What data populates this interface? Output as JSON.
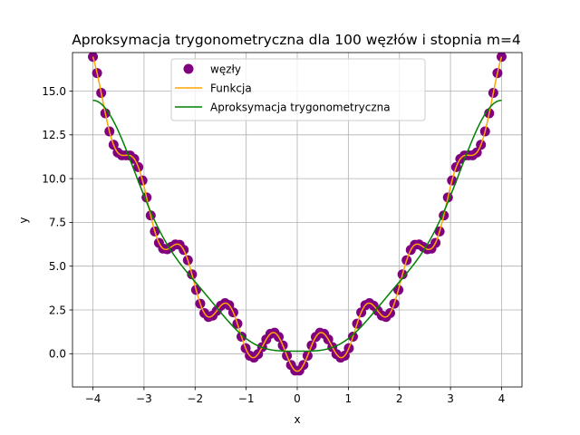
{
  "chart_data": {
    "type": "line",
    "title": "Aproksymacja trygonometryczna dla 100 węzłów i stopnia m=4",
    "xlabel": "x",
    "ylabel": "y",
    "xlim": [
      -4.4,
      4.4
    ],
    "ylim": [
      -1.9,
      17.2
    ],
    "xticks": [
      -4,
      -3,
      -2,
      -1,
      0,
      1,
      2,
      3,
      4
    ],
    "xtick_labels": [
      "−4",
      "−3",
      "−2",
      "−1",
      "0",
      "1",
      "2",
      "3",
      "4"
    ],
    "yticks": [
      0,
      2.5,
      5,
      7.5,
      10,
      12.5,
      15
    ],
    "ytick_labels": [
      "0.0",
      "2.5",
      "5.0",
      "7.5",
      "10.0",
      "12.5",
      "15.0"
    ],
    "grid": true,
    "legend_position": "upper-center",
    "x_range": [
      -4,
      4
    ],
    "series": [
      {
        "name": "węzły",
        "kind": "scatter",
        "color": "#800080",
        "points": 100,
        "model": "y = x^2 - sin(7x)*... (nodes of the original function)",
        "formula": "x*x - cos(7*x)"
      },
      {
        "name": "Funkcja",
        "kind": "line",
        "color": "#ffa500",
        "formula": "x*x - cos(7*x)"
      },
      {
        "name": "Aproksymacja trygonometryczna",
        "kind": "line",
        "color": "#008000",
        "formula": "trig-approx-m4"
      }
    ]
  }
}
